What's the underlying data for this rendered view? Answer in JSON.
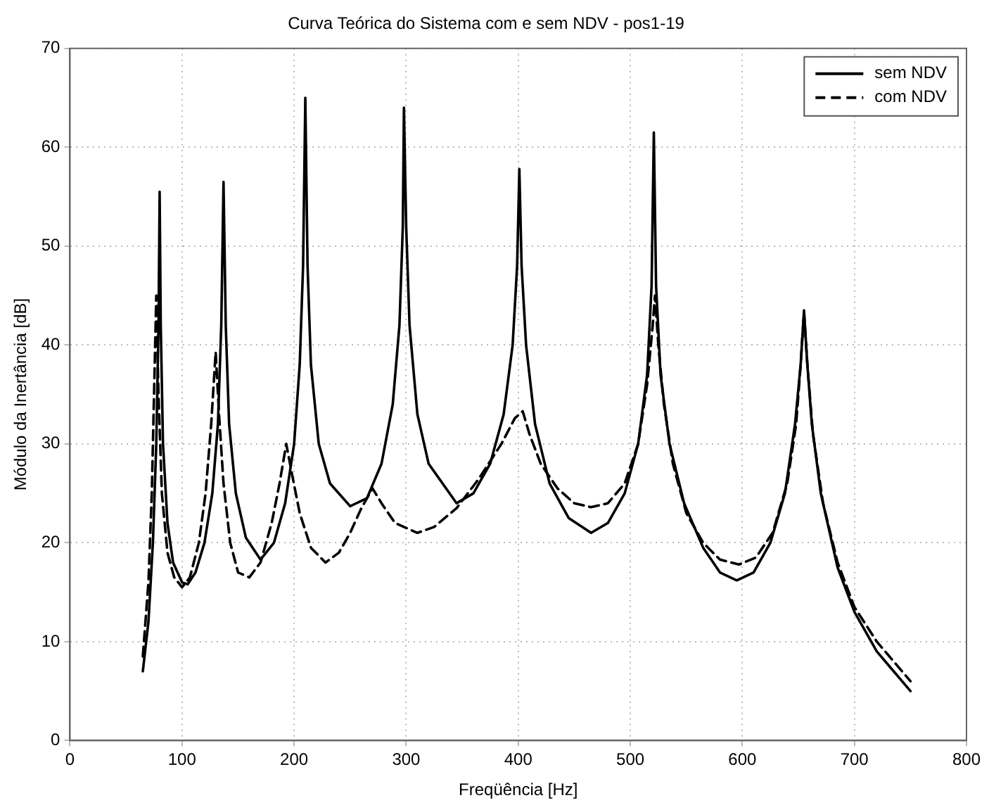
{
  "chart_data": {
    "type": "line",
    "title": "Curva Teórica do Sistema com e sem NDV - pos1-19",
    "xlabel": "Freqüência [Hz]",
    "ylabel": "Módulo da Inertância [dB]",
    "xlim": [
      0,
      800
    ],
    "xticks": [
      0,
      100,
      200,
      300,
      400,
      500,
      600,
      700,
      800
    ],
    "ylim": [
      0,
      70
    ],
    "yticks": [
      0,
      10,
      20,
      30,
      40,
      50,
      60,
      70
    ],
    "grid": true,
    "legend": "top right",
    "marker": "none",
    "series": [
      {
        "name": "sem NDV",
        "color": "#000000",
        "line_style": "solid",
        "x": [
          65,
          70,
          74,
          77,
          79,
          80,
          81,
          83,
          87,
          92,
          100,
          105,
          112,
          120,
          127,
          132,
          135,
          137,
          139,
          142,
          148,
          157,
          170,
          182,
          192,
          200,
          205,
          208,
          210,
          212,
          215,
          222,
          232,
          250,
          265,
          278,
          288,
          294,
          297,
          298,
          300,
          303,
          310,
          320,
          345,
          360,
          375,
          387,
          395,
          399,
          401,
          403,
          407,
          415,
          428,
          445,
          465,
          480,
          495,
          507,
          515,
          519,
          521,
          523,
          527,
          535,
          548,
          565,
          580,
          595,
          610,
          625,
          638,
          647,
          652,
          655,
          658,
          662,
          670,
          685,
          700,
          720,
          735,
          750
        ],
        "values": [
          7,
          12,
          20,
          30,
          42,
          55.5,
          42,
          30,
          22,
          18,
          16,
          15.8,
          17,
          20,
          25,
          32,
          42,
          56.5,
          42,
          32,
          25,
          20.5,
          18.3,
          20,
          24,
          30,
          38,
          48,
          65,
          48,
          38,
          30,
          26,
          23.7,
          24.5,
          28,
          34,
          42,
          52,
          64,
          52,
          42,
          33,
          28,
          24,
          25,
          28,
          33,
          40,
          48,
          57.8,
          48,
          40,
          32,
          26,
          22.5,
          21,
          22,
          25,
          30,
          37,
          46,
          61.5,
          46,
          37,
          30,
          24,
          19.5,
          17,
          16.2,
          17,
          20,
          25,
          32,
          38,
          43.5,
          38,
          32,
          25,
          17.5,
          13,
          9,
          7,
          5
        ]
      },
      {
        "name": "com NDV",
        "color": "#000000",
        "line_style": "dashed",
        "x": [
          65,
          70,
          73,
          75,
          77,
          79,
          82,
          87,
          93,
          100,
          107,
          115,
          121,
          126,
          130,
          133,
          137,
          143,
          150,
          160,
          170,
          180,
          187,
          193,
          198,
          205,
          215,
          228,
          240,
          250,
          260,
          270,
          278,
          290,
          310,
          325,
          345,
          365,
          385,
          397,
          404,
          410,
          420,
          435,
          450,
          465,
          480,
          495,
          507,
          515,
          520,
          522,
          525,
          530,
          538,
          550,
          565,
          580,
          597,
          612,
          627,
          640,
          648,
          652,
          655,
          658,
          663,
          672,
          685,
          700,
          720,
          735,
          750
        ],
        "values": [
          8.5,
          16,
          25,
          35,
          45,
          35,
          25,
          19,
          16.5,
          15.5,
          16.5,
          20,
          25,
          32,
          39.3,
          33,
          26,
          20,
          17,
          16.5,
          18,
          22,
          26,
          30,
          27,
          23,
          19.5,
          18,
          19,
          21,
          23.5,
          25.5,
          24,
          22,
          21,
          21.6,
          23.5,
          26.5,
          30,
          32.6,
          33.3,
          31,
          28,
          25.5,
          24,
          23.6,
          24,
          26,
          30,
          36,
          42,
          45,
          40,
          34,
          28,
          23,
          20,
          18.3,
          17.8,
          18.5,
          21,
          26,
          32,
          38,
          43.3,
          38,
          31,
          24,
          18,
          13.5,
          10,
          8,
          6
        ]
      }
    ]
  }
}
